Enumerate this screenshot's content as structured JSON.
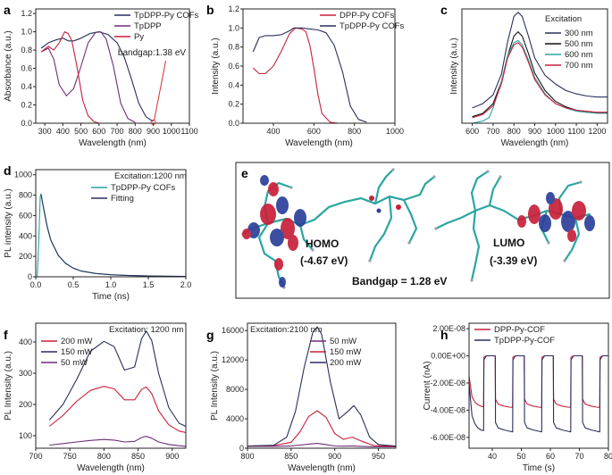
{
  "colors": {
    "pyred": "#c8203a",
    "tpdpp": "#2a2f5a",
    "purple": "#6e2d78",
    "cyan": "#2aa6a0"
  },
  "molecule": {
    "panel_label": "e",
    "homo_label": "HOMO",
    "homo_value": "(-4.67 eV)",
    "lumo_label": "LUMO",
    "lumo_value": "(-3.39 eV)",
    "bandgap": "Bandgap = 1.28 eV"
  },
  "chart_data": [
    {
      "id": "a",
      "panel_label": "a",
      "type": "line",
      "xlabel": "Wavelength (nm)",
      "ylabel": "Absorbance (a.u.)",
      "xlim": [
        250,
        1100
      ],
      "ylim": [
        0,
        1.25
      ],
      "xticks": [
        300,
        400,
        500,
        600,
        700,
        800,
        900,
        1000,
        1100
      ],
      "yticks": [
        0.0,
        0.2,
        0.4,
        0.6,
        0.8,
        1.0,
        1.2
      ],
      "legend": "top-right",
      "annotation": "bandgap:1.38 eV",
      "annotation_x": 900,
      "series": [
        {
          "name": "TpDPP-Py COFs",
          "color": "#2a2f5a",
          "x": [
            280,
            320,
            360,
            400,
            430,
            460,
            500,
            550,
            600,
            650,
            700,
            740,
            780,
            820,
            860,
            900
          ],
          "y": [
            0.82,
            0.88,
            0.91,
            0.93,
            0.9,
            0.9,
            0.93,
            0.98,
            1.0,
            0.97,
            0.88,
            0.72,
            0.48,
            0.22,
            0.07,
            0.02
          ]
        },
        {
          "name": "TpDPP",
          "color": "#6e2d78",
          "x": [
            280,
            320,
            350,
            380,
            420,
            460,
            500,
            540,
            580,
            610,
            640,
            680,
            720,
            760,
            800
          ],
          "y": [
            0.78,
            0.82,
            0.7,
            0.42,
            0.3,
            0.38,
            0.62,
            0.88,
            0.99,
            1.0,
            0.92,
            0.62,
            0.22,
            0.05,
            0.01
          ]
        },
        {
          "name": "Py",
          "color": "#c8203a",
          "x": [
            280,
            320,
            350,
            380,
            410,
            430,
            450,
            480,
            510,
            540,
            570,
            600
          ],
          "y": [
            0.78,
            0.84,
            0.8,
            0.88,
            1.0,
            0.98,
            0.9,
            0.6,
            0.25,
            0.08,
            0.02,
            0.0
          ]
        }
      ]
    },
    {
      "id": "b",
      "panel_label": "b",
      "type": "line",
      "xlabel": "Wavelength (nm)",
      "ylabel": "Intensity (a.u.)",
      "xlim": [
        250,
        1000
      ],
      "ylim": [
        0,
        1.2
      ],
      "xticks": [
        400,
        600,
        800,
        1000
      ],
      "yticks": [
        0.0,
        0.2,
        0.4,
        0.6,
        0.8,
        1.0,
        1.2
      ],
      "legend": "top-right",
      "series": [
        {
          "name": "DPP-Py COFs",
          "color": "#c8203a",
          "x": [
            300,
            330,
            360,
            400,
            440,
            480,
            510,
            540,
            560,
            580,
            600,
            620,
            640,
            680,
            720
          ],
          "y": [
            0.58,
            0.52,
            0.52,
            0.6,
            0.76,
            0.94,
            1.0,
            0.99,
            0.96,
            0.82,
            0.58,
            0.3,
            0.1,
            0.01,
            0.0
          ]
        },
        {
          "name": "TpDPP-Py COFs",
          "color": "#2a2f5a",
          "x": [
            300,
            330,
            360,
            400,
            440,
            480,
            500,
            540,
            580,
            620,
            660,
            700,
            740,
            780,
            820,
            860
          ],
          "y": [
            0.75,
            0.9,
            0.92,
            0.92,
            0.93,
            0.97,
            1.0,
            1.0,
            0.99,
            0.98,
            0.95,
            0.82,
            0.55,
            0.18,
            0.04,
            0.01
          ]
        }
      ]
    },
    {
      "id": "c",
      "panel_label": "c",
      "type": "line",
      "xlabel": "Wavelength (nm)",
      "ylabel": "Intensity (a.u.)",
      "xlim": [
        550,
        1250
      ],
      "ylim": [
        0,
        1.05
      ],
      "xticks": [
        600,
        700,
        800,
        900,
        1000,
        1100,
        1200
      ],
      "yticks": [],
      "legend": "top-right",
      "legend_title": "Excitation",
      "series": [
        {
          "name": "300 nm",
          "color": "#2a2f5a",
          "x": [
            600,
            650,
            700,
            740,
            770,
            800,
            820,
            840,
            870,
            900,
            950,
            1000,
            1050,
            1100,
            1150,
            1200,
            1250
          ],
          "y": [
            0.14,
            0.18,
            0.26,
            0.45,
            0.75,
            0.98,
            1.02,
            0.98,
            0.8,
            0.6,
            0.44,
            0.36,
            0.3,
            0.27,
            0.25,
            0.24,
            0.24
          ]
        },
        {
          "name": "500 nm",
          "color": "#111111",
          "x": [
            600,
            650,
            700,
            740,
            770,
            800,
            820,
            840,
            870,
            900,
            950,
            1000,
            1050,
            1100,
            1150,
            1200,
            1250
          ],
          "y": [
            0.06,
            0.09,
            0.18,
            0.38,
            0.62,
            0.8,
            0.84,
            0.8,
            0.64,
            0.46,
            0.3,
            0.2,
            0.15,
            0.12,
            0.1,
            0.1,
            0.1
          ]
        },
        {
          "name": "600 nm",
          "color": "#2aa6a0",
          "x": [
            600,
            650,
            680,
            700,
            740,
            770,
            800,
            820,
            840,
            870,
            900,
            950,
            1000,
            1050,
            1100,
            1150,
            1200,
            1250
          ],
          "y": [
            0.0,
            0.02,
            0.05,
            0.14,
            0.38,
            0.62,
            0.74,
            0.76,
            0.72,
            0.58,
            0.42,
            0.27,
            0.18,
            0.14,
            0.11,
            0.1,
            0.09,
            0.09
          ]
        },
        {
          "name": "700 nm",
          "color": "#c8203a",
          "x": [
            600,
            650,
            700,
            740,
            770,
            800,
            820,
            840,
            870,
            900,
            950,
            1000,
            1050,
            1100,
            1150,
            1200,
            1250
          ],
          "y": [
            0.05,
            0.08,
            0.16,
            0.36,
            0.6,
            0.72,
            0.74,
            0.7,
            0.56,
            0.4,
            0.26,
            0.18,
            0.14,
            0.12,
            0.11,
            0.1,
            0.1
          ]
        }
      ]
    },
    {
      "id": "d",
      "panel_label": "d",
      "type": "line",
      "xlabel": "Time (ns)",
      "ylabel": "PL intensity (a.u.)",
      "xlim": [
        0,
        2.0
      ],
      "ylim": [
        0,
        1050
      ],
      "xticks": [
        0.0,
        0.5,
        1.0,
        1.5,
        2.0
      ],
      "yticks": [
        0,
        200,
        400,
        600,
        800,
        1000
      ],
      "legend": "top-right",
      "legend_title": "Excitation:1200 nm",
      "series": [
        {
          "name": "TpDPP-Py COFs",
          "color": "#2aa6a0",
          "x": [
            0.02,
            0.04,
            0.06,
            0.07,
            0.1,
            0.15,
            0.2,
            0.3,
            0.4,
            0.5,
            0.6,
            0.8,
            1.0,
            1.2,
            1.5,
            1.8,
            2.0
          ],
          "y": [
            0,
            350,
            780,
            810,
            690,
            500,
            360,
            210,
            130,
            85,
            58,
            32,
            20,
            14,
            8,
            5,
            4
          ]
        },
        {
          "name": "Fitting",
          "color": "#2a2f5a",
          "x": [
            0.07,
            0.1,
            0.15,
            0.2,
            0.3,
            0.4,
            0.5,
            0.6,
            0.8,
            1.0,
            1.2,
            1.5,
            1.8,
            2.0
          ],
          "y": [
            810,
            690,
            500,
            360,
            210,
            130,
            85,
            58,
            32,
            20,
            14,
            8,
            5,
            4
          ]
        }
      ]
    },
    {
      "id": "f",
      "panel_label": "f",
      "type": "line",
      "xlabel": "Wavelength (nm)",
      "ylabel": "PL Intensity (a.u.)",
      "xlim": [
        700,
        920
      ],
      "ylim": [
        60,
        460
      ],
      "xticks": [
        700,
        750,
        800,
        850,
        900
      ],
      "yticks": [
        100,
        200,
        300,
        400
      ],
      "legend": "top-left",
      "legend_title": "Excitation: 1200 nm",
      "series": [
        {
          "name": "200 mW",
          "color": "#c8203a",
          "x": [
            720,
            740,
            760,
            780,
            800,
            815,
            830,
            845,
            855,
            862,
            870,
            880,
            895,
            910,
            920
          ],
          "y": [
            130,
            165,
            210,
            245,
            258,
            250,
            215,
            215,
            248,
            256,
            235,
            180,
            135,
            115,
            110
          ]
        },
        {
          "name": "150 mW",
          "color": "#2a2f5a",
          "x": [
            720,
            740,
            760,
            780,
            800,
            815,
            830,
            845,
            855,
            862,
            870,
            880,
            895,
            910,
            920
          ],
          "y": [
            150,
            200,
            280,
            370,
            402,
            385,
            310,
            320,
            410,
            435,
            405,
            300,
            190,
            140,
            130
          ]
        },
        {
          "name": "50 mW",
          "color": "#6e2d78",
          "x": [
            720,
            740,
            760,
            780,
            800,
            815,
            830,
            845,
            855,
            862,
            870,
            880,
            895,
            910,
            920
          ],
          "y": [
            70,
            75,
            80,
            85,
            88,
            86,
            80,
            82,
            94,
            98,
            92,
            80,
            72,
            68,
            66
          ]
        }
      ]
    },
    {
      "id": "g",
      "panel_label": "g",
      "type": "line",
      "xlabel": "Wavelength (nm)",
      "ylabel": "PL Intensity (a.u.)",
      "xlim": [
        800,
        970
      ],
      "ylim": [
        0,
        17000
      ],
      "xticks": [
        800,
        850,
        900,
        950
      ],
      "yticks": [
        0,
        4000,
        8000,
        12000,
        16000
      ],
      "legend": "top-right",
      "legend_title": "Excitation:2100 nm",
      "series": [
        {
          "name": "50 mW",
          "color": "#6e2d78",
          "x": [
            800,
            830,
            850,
            860,
            870,
            880,
            890,
            900,
            910,
            920,
            930,
            945,
            970
          ],
          "y": [
            250,
            260,
            320,
            420,
            560,
            650,
            500,
            300,
            280,
            320,
            260,
            200,
            180
          ]
        },
        {
          "name": "150 mW",
          "color": "#c8203a",
          "x": [
            800,
            830,
            850,
            860,
            870,
            880,
            890,
            900,
            910,
            920,
            930,
            945,
            970
          ],
          "y": [
            300,
            350,
            800,
            2200,
            4300,
            5100,
            4200,
            2000,
            1200,
            1500,
            1000,
            350,
            250
          ]
        },
        {
          "name": "200 mW",
          "color": "#2a2f5a",
          "x": [
            800,
            830,
            845,
            855,
            865,
            875,
            880,
            885,
            895,
            905,
            915,
            922,
            930,
            940,
            950,
            970
          ],
          "y": [
            300,
            400,
            1500,
            5000,
            11000,
            15800,
            16500,
            15500,
            9000,
            4000,
            5000,
            5800,
            4500,
            1500,
            500,
            300
          ]
        }
      ]
    },
    {
      "id": "h",
      "panel_label": "h",
      "type": "line",
      "xlabel": "Time (s)",
      "ylabel": "Current (nA)",
      "xlim": [
        32,
        80
      ],
      "ylim": [
        -6.8e-08,
        2.4e-08
      ],
      "xticks": [
        40,
        50,
        60,
        70,
        80
      ],
      "yticks": [
        -6e-08,
        -4e-08,
        -2e-08,
        0.0,
        2e-08
      ],
      "ytick_labels": [
        "-6.00E-08",
        "-4.00E-08",
        "-2.00E-08",
        "0.00E+00",
        "2.00E-08"
      ],
      "legend": "top-left",
      "series": [
        {
          "name": "DPP-Py-COF",
          "color": "#c8203a",
          "x": [
            32,
            33,
            34,
            35,
            36,
            37,
            37.1,
            38,
            39,
            40,
            41,
            41.1,
            42,
            44,
            46,
            47,
            47.1,
            48,
            49,
            50,
            51,
            51.1,
            52,
            54,
            56,
            57,
            57.1,
            58,
            59,
            60,
            61,
            61.1,
            62,
            64,
            66,
            67,
            67.1,
            68,
            69,
            70,
            71,
            71.1,
            72,
            74,
            76,
            77,
            77.1,
            78,
            79,
            80
          ],
          "y": [
            -1.5e-08,
            -3e-08,
            -3.4e-08,
            -3.6e-08,
            -3.7e-08,
            -3.75e-08,
            -1e-09,
            0.0,
            0.0,
            0.0,
            0.0,
            -3.2e-08,
            -3.55e-08,
            -3.7e-08,
            -3.78e-08,
            -3.8e-08,
            -1e-09,
            0.0,
            0.0,
            0.0,
            0.0,
            -3.2e-08,
            -3.55e-08,
            -3.7e-08,
            -3.78e-08,
            -3.8e-08,
            -1e-09,
            0.0,
            0.0,
            0.0,
            0.0,
            -3.2e-08,
            -3.55e-08,
            -3.7e-08,
            -3.78e-08,
            -3.8e-08,
            -1e-09,
            0.0,
            0.0,
            0.0,
            0.0,
            -3.2e-08,
            -3.55e-08,
            -3.7e-08,
            -3.78e-08,
            -3.8e-08,
            -1e-09,
            0.0,
            0.0,
            0.0
          ]
        },
        {
          "name": "TpDPP-Py-COF",
          "color": "#2a2f5a",
          "x": [
            32,
            33,
            34,
            35,
            36,
            37,
            37.1,
            38,
            39,
            40,
            41,
            41.1,
            42,
            44,
            46,
            47,
            47.1,
            48,
            49,
            50,
            51,
            51.1,
            52,
            54,
            56,
            57,
            57.1,
            58,
            59,
            60,
            61,
            61.1,
            62,
            64,
            66,
            67,
            67.1,
            68,
            69,
            70,
            71,
            71.1,
            72,
            74,
            76,
            77,
            77.1,
            78,
            79,
            80
          ],
          "y": [
            -2e-08,
            -4.4e-08,
            -5e-08,
            -5.3e-08,
            -5.45e-08,
            -5.5e-08,
            -3e-09,
            0.0,
            0.0,
            0.0,
            0.0,
            -4.9e-08,
            -5.3e-08,
            -5.45e-08,
            -5.55e-08,
            -5.6e-08,
            -3e-09,
            0.0,
            0.0,
            0.0,
            0.0,
            -4.9e-08,
            -5.3e-08,
            -5.45e-08,
            -5.55e-08,
            -5.6e-08,
            -3e-09,
            0.0,
            0.0,
            0.0,
            0.0,
            -4.9e-08,
            -5.3e-08,
            -5.45e-08,
            -5.55e-08,
            -5.6e-08,
            -3e-09,
            0.0,
            0.0,
            0.0,
            0.0,
            -4.9e-08,
            -5.3e-08,
            -5.45e-08,
            -5.55e-08,
            -5.6e-08,
            -3e-09,
            0.0,
            0.0,
            0.0
          ]
        }
      ]
    }
  ]
}
